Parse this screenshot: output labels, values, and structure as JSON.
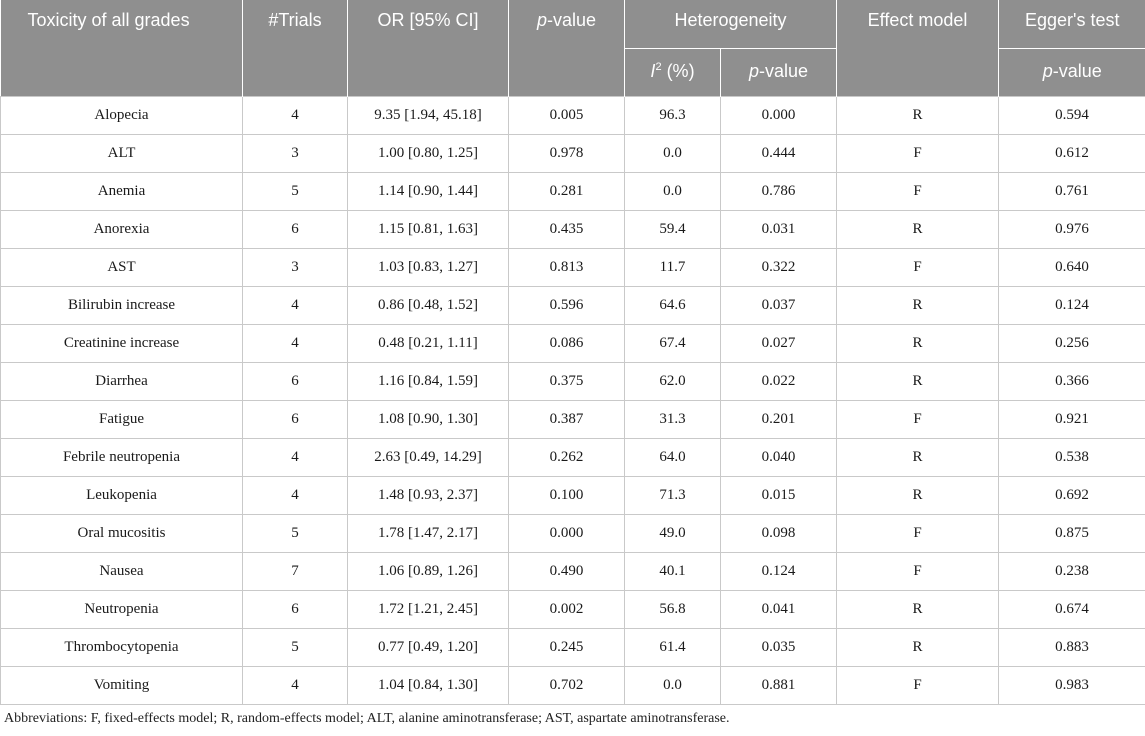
{
  "header": {
    "toxicity": "Toxicity of all grades",
    "trials": "#Trials",
    "or": "OR [95% CI]",
    "p_value_italic": "p",
    "p_value_rest": "-value",
    "heterogeneity": "Heterogeneity",
    "i2_italic": "I",
    "i2_sup": "2",
    "i2_rest": " (%)",
    "het_p_italic": "p",
    "het_p_rest": "-value",
    "effect_model": "Effect model",
    "egger": "Egger's test",
    "egger_p_italic": "p",
    "egger_p_rest": "-value"
  },
  "rows": [
    {
      "toxicity": "Alopecia",
      "trials": "4",
      "or": "9.35 [1.94, 45.18]",
      "p": "0.005",
      "i2": "96.3",
      "het_p": "0.000",
      "model": "R",
      "egger": "0.594"
    },
    {
      "toxicity": "ALT",
      "trials": "3",
      "or": "1.00 [0.80, 1.25]",
      "p": "0.978",
      "i2": "0.0",
      "het_p": "0.444",
      "model": "F",
      "egger": "0.612"
    },
    {
      "toxicity": "Anemia",
      "trials": "5",
      "or": "1.14 [0.90, 1.44]",
      "p": "0.281",
      "i2": "0.0",
      "het_p": "0.786",
      "model": "F",
      "egger": "0.761"
    },
    {
      "toxicity": "Anorexia",
      "trials": "6",
      "or": "1.15 [0.81, 1.63]",
      "p": "0.435",
      "i2": "59.4",
      "het_p": "0.031",
      "model": "R",
      "egger": "0.976"
    },
    {
      "toxicity": "AST",
      "trials": "3",
      "or": "1.03 [0.83, 1.27]",
      "p": "0.813",
      "i2": "11.7",
      "het_p": "0.322",
      "model": "F",
      "egger": "0.640"
    },
    {
      "toxicity": "Bilirubin increase",
      "trials": "4",
      "or": "0.86 [0.48, 1.52]",
      "p": "0.596",
      "i2": "64.6",
      "het_p": "0.037",
      "model": "R",
      "egger": "0.124"
    },
    {
      "toxicity": "Creatinine increase",
      "trials": "4",
      "or": "0.48 [0.21, 1.11]",
      "p": "0.086",
      "i2": "67.4",
      "het_p": "0.027",
      "model": "R",
      "egger": "0.256"
    },
    {
      "toxicity": "Diarrhea",
      "trials": "6",
      "or": "1.16 [0.84, 1.59]",
      "p": "0.375",
      "i2": "62.0",
      "het_p": "0.022",
      "model": "R",
      "egger": "0.366"
    },
    {
      "toxicity": "Fatigue",
      "trials": "6",
      "or": "1.08 [0.90, 1.30]",
      "p": "0.387",
      "i2": "31.3",
      "het_p": "0.201",
      "model": "F",
      "egger": "0.921"
    },
    {
      "toxicity": "Febrile neutropenia",
      "trials": "4",
      "or": "2.63 [0.49, 14.29]",
      "p": "0.262",
      "i2": "64.0",
      "het_p": "0.040",
      "model": "R",
      "egger": "0.538"
    },
    {
      "toxicity": "Leukopenia",
      "trials": "4",
      "or": "1.48 [0.93, 2.37]",
      "p": "0.100",
      "i2": "71.3",
      "het_p": "0.015",
      "model": "R",
      "egger": "0.692"
    },
    {
      "toxicity": "Oral mucositis",
      "trials": "5",
      "or": "1.78 [1.47, 2.17]",
      "p": "0.000",
      "i2": "49.0",
      "het_p": "0.098",
      "model": "F",
      "egger": "0.875"
    },
    {
      "toxicity": "Nausea",
      "trials": "7",
      "or": "1.06 [0.89, 1.26]",
      "p": "0.490",
      "i2": "40.1",
      "het_p": "0.124",
      "model": "F",
      "egger": "0.238"
    },
    {
      "toxicity": "Neutropenia",
      "trials": "6",
      "or": "1.72 [1.21, 2.45]",
      "p": "0.002",
      "i2": "56.8",
      "het_p": "0.041",
      "model": "R",
      "egger": "0.674"
    },
    {
      "toxicity": "Thrombocytopenia",
      "trials": "5",
      "or": "0.77 [0.49, 1.20]",
      "p": "0.245",
      "i2": "61.4",
      "het_p": "0.035",
      "model": "R",
      "egger": "0.883"
    },
    {
      "toxicity": "Vomiting",
      "trials": "4",
      "or": "1.04 [0.84, 1.30]",
      "p": "0.702",
      "i2": "0.0",
      "het_p": "0.881",
      "model": "F",
      "egger": "0.983"
    }
  ],
  "footnote": "Abbreviations: F, fixed-effects model; R, random-effects model; ALT, alanine aminotransferase; AST, aspartate aminotransferase."
}
